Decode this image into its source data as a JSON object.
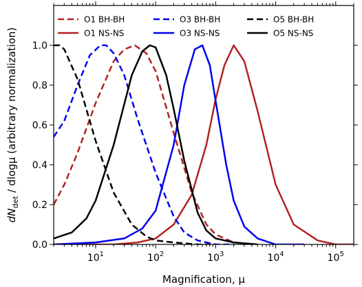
{
  "chart_data": {
    "type": "line",
    "xlabel": "Magnification, μ",
    "ylabel_parts": [
      "dN",
      "det",
      " / dlogμ (arbitrary normalization)"
    ],
    "x_scale": "log",
    "xlim": [
      2,
      200000
    ],
    "ylim": [
      0,
      1.2
    ],
    "x_ticks": [
      {
        "value": 10,
        "base": "10",
        "exp": "1"
      },
      {
        "value": 100,
        "base": "10",
        "exp": "2"
      },
      {
        "value": 1000,
        "base": "10",
        "exp": "3"
      },
      {
        "value": 10000,
        "base": "10",
        "exp": "4"
      },
      {
        "value": 100000,
        "base": "10",
        "exp": "5"
      }
    ],
    "y_ticks": [
      {
        "value": 0.0,
        "label": "0.0"
      },
      {
        "value": 0.2,
        "label": "0.2"
      },
      {
        "value": 0.4,
        "label": "0.4"
      },
      {
        "value": 0.6,
        "label": "0.6"
      },
      {
        "value": 0.8,
        "label": "0.8"
      },
      {
        "value": 1.0,
        "label": "1.0"
      }
    ],
    "grid": false,
    "legend_position": "top",
    "series": [
      {
        "name": "O1 BH-BH",
        "color": "#b22222",
        "dash": "dashed",
        "x": [
          2,
          3,
          5,
          10,
          20,
          30,
          45,
          70,
          100,
          200,
          400,
          700,
          1000,
          2000,
          5000
        ],
        "y": [
          0.2,
          0.3,
          0.46,
          0.71,
          0.92,
          0.98,
          1.0,
          0.96,
          0.87,
          0.56,
          0.26,
          0.1,
          0.05,
          0.01,
          0.0
        ]
      },
      {
        "name": "O1 NS-NS",
        "color": "#b22222",
        "dash": "solid",
        "x": [
          2,
          20,
          50,
          100,
          200,
          400,
          700,
          1000,
          1400,
          2000,
          3000,
          5000,
          10000,
          20000,
          50000,
          100000,
          200000
        ],
        "y": [
          0.0,
          0.0,
          0.01,
          0.03,
          0.1,
          0.25,
          0.5,
          0.73,
          0.9,
          1.0,
          0.92,
          0.67,
          0.3,
          0.1,
          0.02,
          0.0,
          0.0
        ]
      },
      {
        "name": "O3 BH-BH",
        "color": "#0000ee",
        "dash": "dashed",
        "x": [
          2,
          3,
          5,
          8,
          12,
          15,
          20,
          30,
          50,
          100,
          200,
          300,
          500,
          1000,
          2000
        ],
        "y": [
          0.54,
          0.62,
          0.8,
          0.95,
          1.0,
          1.0,
          0.96,
          0.85,
          0.63,
          0.36,
          0.14,
          0.06,
          0.02,
          0.0,
          0.0
        ]
      },
      {
        "name": "O3 NS-NS",
        "color": "#0000ee",
        "dash": "solid",
        "x": [
          2,
          10,
          30,
          60,
          100,
          200,
          300,
          450,
          600,
          800,
          1000,
          1500,
          2000,
          3000,
          5000,
          10000,
          30000
        ],
        "y": [
          0.0,
          0.01,
          0.03,
          0.08,
          0.17,
          0.5,
          0.8,
          0.98,
          1.0,
          0.9,
          0.72,
          0.4,
          0.22,
          0.09,
          0.03,
          0.0,
          0.0
        ]
      },
      {
        "name": "O5 BH-BH",
        "color": "#000000",
        "dash": "dashed",
        "x": [
          2,
          2.5,
          3,
          5,
          8,
          10,
          20,
          40,
          70,
          100,
          200,
          500,
          1000
        ],
        "y": [
          1.0,
          1.0,
          0.98,
          0.83,
          0.62,
          0.52,
          0.26,
          0.1,
          0.04,
          0.02,
          0.01,
          0.0,
          0.0
        ]
      },
      {
        "name": "O5 NS-NS",
        "color": "#000000",
        "dash": "solid",
        "x": [
          2,
          4,
          7,
          10,
          20,
          40,
          60,
          80,
          100,
          150,
          200,
          300,
          500,
          700,
          1000,
          2000,
          5000
        ],
        "y": [
          0.03,
          0.06,
          0.13,
          0.22,
          0.5,
          0.85,
          0.97,
          1.0,
          0.99,
          0.85,
          0.68,
          0.42,
          0.16,
          0.07,
          0.03,
          0.01,
          0.0
        ]
      }
    ]
  }
}
